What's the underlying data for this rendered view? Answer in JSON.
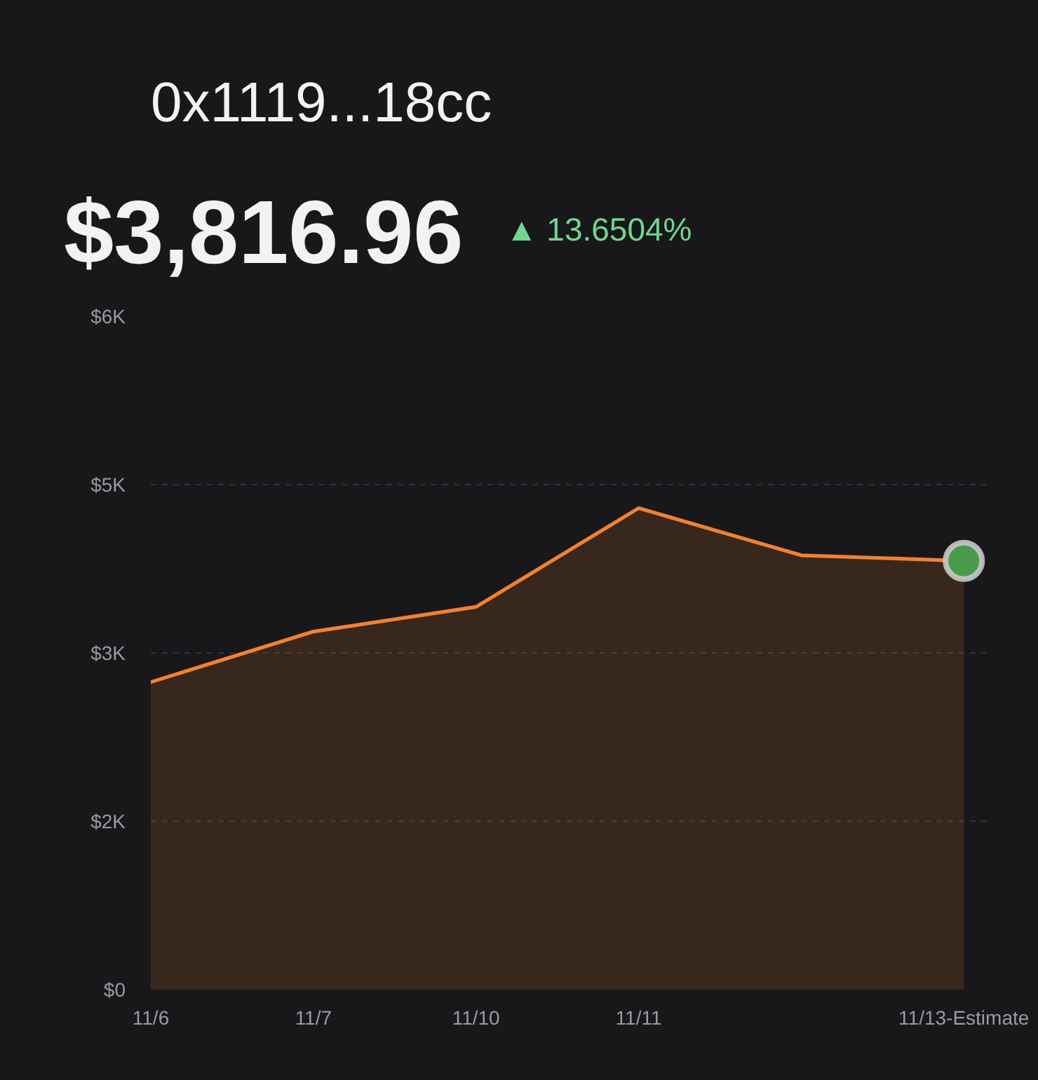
{
  "chart_data": {
    "type": "area",
    "title": "0x1119...18cc",
    "subtitle": "$3,816.96",
    "annotations": [
      "▲ 13.6504%"
    ],
    "categories": [
      "11/6",
      "11/7",
      "11/10",
      "11/11",
      null,
      "11/13-Estimate"
    ],
    "series": [
      {
        "color": "#f28130",
        "values": [
          2740,
          3190,
          3410,
          4290,
          3870,
          3820
        ]
      },
      {
        "type": "scatter",
        "color": "#4a9a4c",
        "marker": "circle",
        "values": [
          null,
          null,
          null,
          null,
          null,
          3820
        ]
      }
    ],
    "ylim": [
      0,
      6000
    ],
    "yticks": [
      {
        "value": 0,
        "label": "$0"
      },
      {
        "value": 1500,
        "label": "$2K"
      },
      {
        "value": 3000,
        "label": "$3K"
      },
      {
        "value": 4500,
        "label": "$5K"
      },
      {
        "value": 6000,
        "label": "$6K"
      }
    ],
    "grid": "y"
  }
}
